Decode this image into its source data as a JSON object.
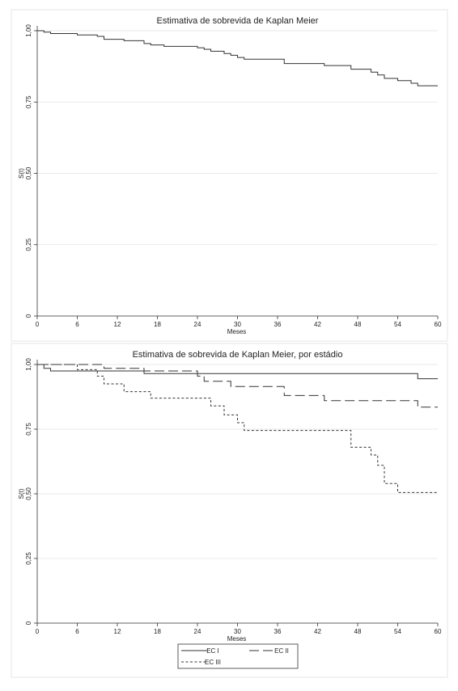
{
  "chart_data": [
    {
      "type": "line",
      "title": "Estimativa de sobrevida de Kaplan Meier",
      "xlabel": "Meses",
      "ylabel": "S(t)",
      "xlim": [
        0,
        60
      ],
      "ylim": [
        0,
        1
      ],
      "xticks": [
        "0",
        "6",
        "12",
        "18",
        "24",
        "30",
        "36",
        "42",
        "48",
        "54",
        "60"
      ],
      "yticks": [
        "0",
        "0,25",
        "0,50",
        "0,75",
        "1,00"
      ],
      "grid": true,
      "series": [
        {
          "name": "",
          "style": "solid",
          "x": [
            0,
            1,
            2,
            6,
            9,
            10,
            13,
            16,
            17,
            19,
            24,
            25,
            26,
            28,
            29,
            30,
            31,
            37,
            43,
            47,
            50,
            51,
            52,
            54,
            56,
            57,
            60
          ],
          "y": [
            1.0,
            0.995,
            0.99,
            0.985,
            0.98,
            0.97,
            0.965,
            0.955,
            0.95,
            0.945,
            0.94,
            0.935,
            0.928,
            0.92,
            0.914,
            0.906,
            0.9,
            0.885,
            0.878,
            0.865,
            0.855,
            0.845,
            0.833,
            0.825,
            0.816,
            0.807,
            0.807
          ]
        }
      ]
    },
    {
      "type": "line",
      "title": "Estimativa de sobrevida de Kaplan Meier, por estádio",
      "xlabel": "Meses",
      "ylabel": "S(t)",
      "xlim": [
        0,
        60
      ],
      "ylim": [
        0,
        1
      ],
      "xticks": [
        "0",
        "6",
        "12",
        "18",
        "24",
        "30",
        "36",
        "42",
        "48",
        "54",
        "60"
      ],
      "yticks": [
        "0",
        "0,25",
        "0,50",
        "0,75",
        "1,00"
      ],
      "grid": true,
      "legend_position": "bottom",
      "series": [
        {
          "name": "EC I",
          "style": "solid",
          "x": [
            0,
            1,
            2,
            16,
            57,
            60
          ],
          "y": [
            1.0,
            0.985,
            0.975,
            0.965,
            0.945,
            0.945
          ]
        },
        {
          "name": "EC II",
          "style": "longdash",
          "x": [
            0,
            10,
            16,
            24,
            25,
            29,
            37,
            43,
            57,
            60
          ],
          "y": [
            1.0,
            0.985,
            0.975,
            0.955,
            0.935,
            0.915,
            0.88,
            0.86,
            0.835,
            0.835
          ]
        },
        {
          "name": "EC III",
          "style": "shortdash",
          "x": [
            0,
            6,
            9,
            10,
            13,
            17,
            26,
            28,
            30,
            31,
            47,
            50,
            51,
            52,
            54,
            60
          ],
          "y": [
            1.0,
            0.98,
            0.955,
            0.925,
            0.895,
            0.87,
            0.84,
            0.805,
            0.775,
            0.745,
            0.68,
            0.65,
            0.61,
            0.54,
            0.505,
            0.505
          ]
        }
      ]
    }
  ]
}
